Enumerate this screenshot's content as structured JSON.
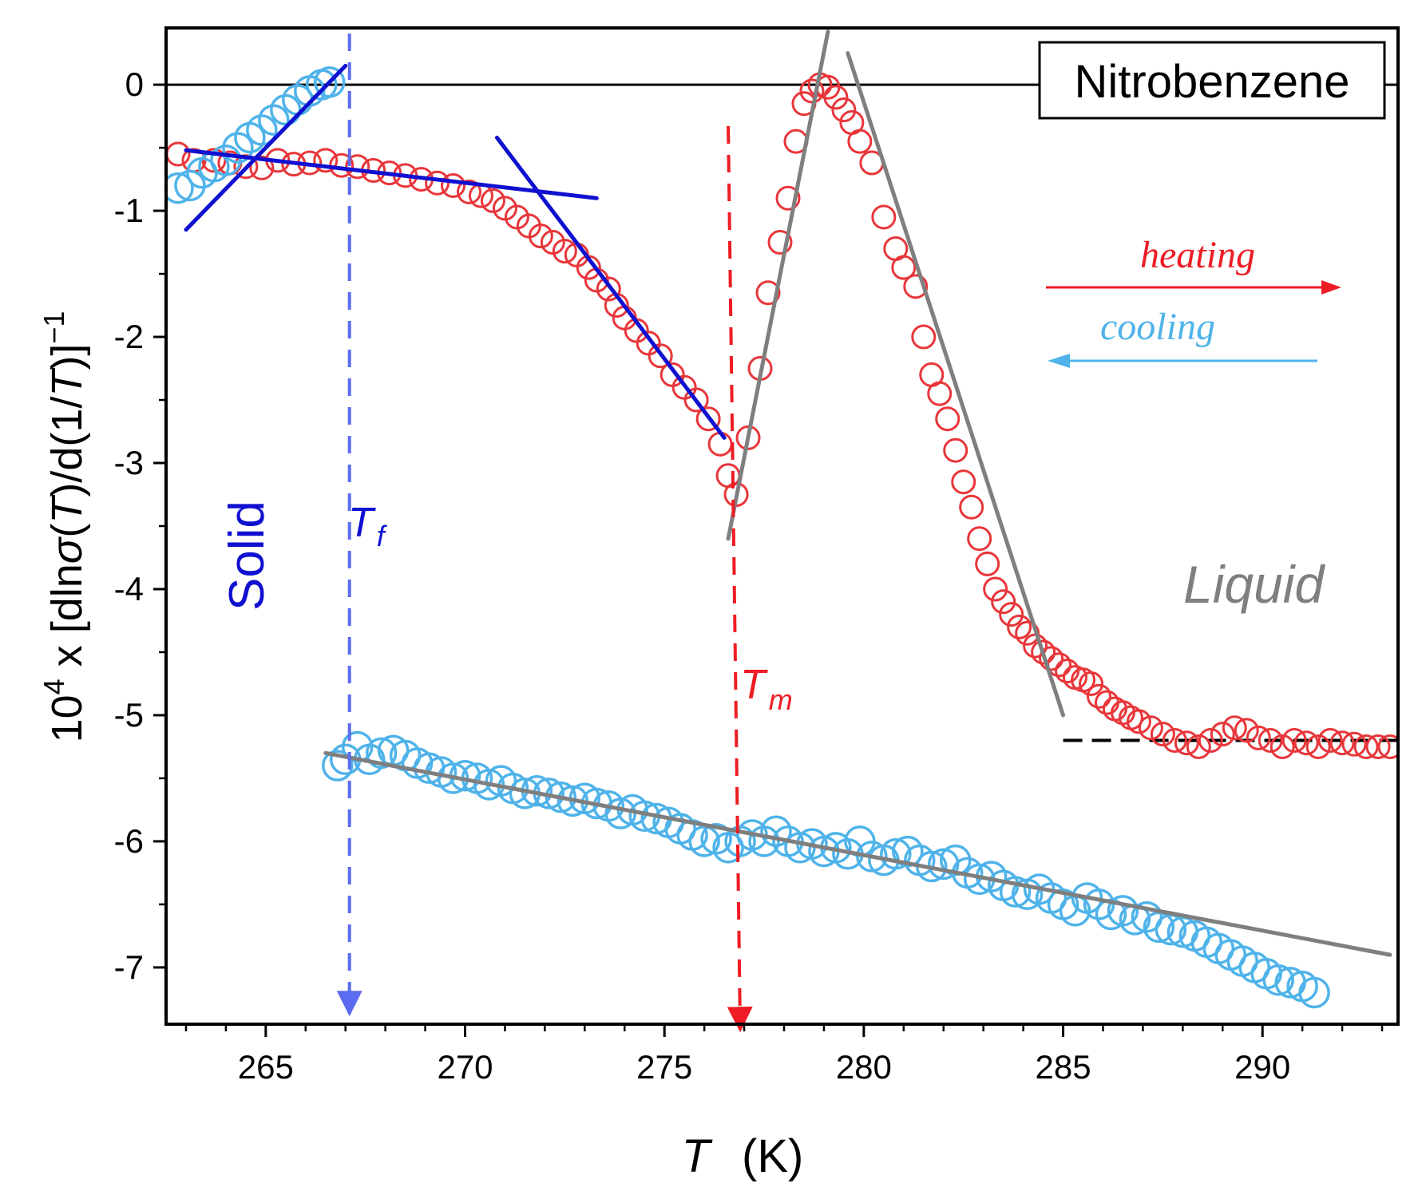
{
  "chart_data": {
    "type": "scatter",
    "title": "Nitrobenzene",
    "xlabel": "T",
    "xlabel_unit": "(K)",
    "ylabel": "10^4 x [dlnσ(T)/d(1/T)]^-1",
    "ylabel_parts": {
      "base": "10",
      "exp": "4",
      "mid": " x [dln",
      "sigma": "σ",
      "paren_open": "(",
      "T1": "T",
      "mid2": ")/d(1/",
      "T2": "T",
      "close": ")]",
      "exp2": "−1"
    },
    "xlim": [
      262.5,
      293.4
    ],
    "ylim": [
      -7.45,
      0.45
    ],
    "x_ticks": [
      265,
      270,
      275,
      280,
      285,
      290
    ],
    "x_tick_labels": [
      "265",
      "270",
      "275",
      "280",
      "285",
      "290"
    ],
    "y_ticks": [
      0,
      -1,
      -2,
      -3,
      -4,
      -5,
      -6,
      -7
    ],
    "y_tick_labels": [
      "0",
      "-1",
      "-2",
      "-3",
      "-4",
      "-5",
      "-6",
      "-7"
    ],
    "annotations": {
      "solid": "Solid",
      "liquid": "Liquid",
      "tf_main": "T",
      "tf_sub": "f",
      "tm_main": "T",
      "tm_sub": "m",
      "heating": "heating",
      "cooling": "cooling"
    },
    "markers": {
      "Tf": 267.1,
      "Tm": 276.9
    },
    "colors": {
      "heating": "#e8363a",
      "cooling": "#4fb3ea",
      "fit_blue": "#1010d0",
      "fit_gray": "#7f7f7f",
      "tf_line": "#5b6cf0",
      "tm_line": "#ee1c24",
      "solid_text": "#1010d0",
      "liquid_text": "#7f7f7f"
    },
    "series": [
      {
        "name": "heating",
        "x": [
          262.8,
          263.2,
          263.7,
          264.1,
          264.5,
          264.9,
          265.3,
          265.7,
          266.1,
          266.5,
          266.9,
          267.3,
          267.7,
          268.1,
          268.5,
          268.9,
          269.3,
          269.7,
          270.1,
          270.4,
          270.7,
          271.0,
          271.3,
          271.6,
          271.9,
          272.2,
          272.5,
          272.8,
          273.1,
          273.3,
          273.6,
          273.8,
          274.0,
          274.3,
          274.6,
          274.9,
          275.2,
          275.5,
          275.8,
          276.1,
          276.4,
          276.6,
          276.8,
          277.1,
          277.4,
          277.6,
          277.9,
          278.1,
          278.3,
          278.5,
          278.7,
          278.9,
          279.1,
          279.3,
          279.5,
          279.7,
          279.9,
          280.2,
          280.5,
          280.8,
          281.0,
          281.3,
          281.5,
          281.7,
          281.9,
          282.1,
          282.3,
          282.5,
          282.7,
          282.9,
          283.1,
          283.3,
          283.5,
          283.7,
          283.9,
          284.1,
          284.3,
          284.5,
          284.7,
          284.9,
          285.1,
          285.3,
          285.5,
          285.7,
          285.9,
          286.1,
          286.3,
          286.5,
          286.7,
          286.9,
          287.2,
          287.5,
          287.8,
          288.1,
          288.4,
          288.7,
          289.0,
          289.3,
          289.6,
          289.9,
          290.2,
          290.5,
          290.8,
          291.1,
          291.4,
          291.7,
          292.0,
          292.3,
          292.6,
          292.9,
          293.2
        ],
        "y": [
          -0.55,
          -0.6,
          -0.6,
          -0.62,
          -0.65,
          -0.66,
          -0.6,
          -0.63,
          -0.62,
          -0.6,
          -0.64,
          -0.65,
          -0.68,
          -0.7,
          -0.72,
          -0.75,
          -0.78,
          -0.8,
          -0.85,
          -0.88,
          -0.92,
          -0.98,
          -1.05,
          -1.12,
          -1.2,
          -1.25,
          -1.32,
          -1.35,
          -1.45,
          -1.55,
          -1.62,
          -1.75,
          -1.85,
          -1.95,
          -2.05,
          -2.15,
          -2.3,
          -2.4,
          -2.5,
          -2.65,
          -2.85,
          -3.1,
          -3.25,
          -2.8,
          -2.25,
          -1.65,
          -1.25,
          -0.9,
          -0.45,
          -0.15,
          -0.05,
          0,
          -0.02,
          -0.1,
          -0.2,
          -0.3,
          -0.45,
          -0.62,
          -1.05,
          -1.3,
          -1.45,
          -1.6,
          -2.0,
          -2.3,
          -2.45,
          -2.65,
          -2.9,
          -3.15,
          -3.35,
          -3.6,
          -3.8,
          -4.0,
          -4.1,
          -4.2,
          -4.3,
          -4.35,
          -4.45,
          -4.5,
          -4.55,
          -4.6,
          -4.65,
          -4.7,
          -4.72,
          -4.75,
          -4.85,
          -4.9,
          -4.95,
          -4.98,
          -5.02,
          -5.05,
          -5.1,
          -5.15,
          -5.2,
          -5.22,
          -5.25,
          -5.2,
          -5.15,
          -5.1,
          -5.12,
          -5.18,
          -5.2,
          -5.25,
          -5.2,
          -5.22,
          -5.25,
          -5.2,
          -5.22,
          -5.23,
          -5.25,
          -5.25,
          -5.25
        ]
      },
      {
        "name": "cooling",
        "x": [
          262.8,
          263.1,
          263.4,
          263.7,
          264.0,
          264.3,
          264.6,
          264.9,
          265.2,
          265.5,
          265.8,
          266.1,
          266.4,
          266.6,
          266.8,
          267.0,
          267.3,
          267.6,
          267.9,
          268.2,
          268.5,
          268.8,
          269.1,
          269.4,
          269.7,
          270.0,
          270.3,
          270.6,
          270.9,
          271.2,
          271.5,
          271.8,
          272.1,
          272.4,
          272.7,
          273.0,
          273.3,
          273.6,
          273.9,
          274.2,
          274.5,
          274.8,
          275.1,
          275.4,
          275.7,
          276.0,
          276.3,
          276.6,
          276.9,
          277.2,
          277.5,
          277.8,
          278.1,
          278.4,
          278.7,
          279.0,
          279.3,
          279.6,
          279.9,
          280.2,
          280.5,
          280.8,
          281.1,
          281.4,
          281.7,
          282.0,
          282.3,
          282.6,
          282.9,
          283.2,
          283.5,
          283.8,
          284.1,
          284.4,
          284.7,
          285.0,
          285.3,
          285.6,
          285.9,
          286.2,
          286.5,
          286.8,
          287.1,
          287.4,
          287.7,
          288.0,
          288.3,
          288.6,
          288.9,
          289.2,
          289.5,
          289.8,
          290.1,
          290.4,
          290.7,
          291.0,
          291.3
        ],
        "y": [
          -0.82,
          -0.8,
          -0.7,
          -0.65,
          -0.6,
          -0.5,
          -0.42,
          -0.36,
          -0.28,
          -0.2,
          -0.12,
          -0.05,
          0.0,
          0.02,
          -5.4,
          -5.35,
          -5.25,
          -5.35,
          -5.3,
          -5.28,
          -5.32,
          -5.38,
          -5.42,
          -5.45,
          -5.5,
          -5.48,
          -5.5,
          -5.55,
          -5.52,
          -5.58,
          -5.62,
          -5.6,
          -5.62,
          -5.65,
          -5.68,
          -5.66,
          -5.7,
          -5.72,
          -5.78,
          -5.75,
          -5.8,
          -5.82,
          -5.85,
          -5.9,
          -5.95,
          -6.0,
          -5.98,
          -6.05,
          -6.0,
          -5.95,
          -6.0,
          -5.92,
          -6.0,
          -6.05,
          -6.02,
          -6.08,
          -6.05,
          -6.1,
          -6.0,
          -6.12,
          -6.15,
          -6.1,
          -6.08,
          -6.15,
          -6.2,
          -6.18,
          -6.15,
          -6.25,
          -6.3,
          -6.28,
          -6.35,
          -6.4,
          -6.42,
          -6.38,
          -6.45,
          -6.5,
          -6.55,
          -6.45,
          -6.5,
          -6.58,
          -6.55,
          -6.62,
          -6.6,
          -6.68,
          -6.7,
          -6.72,
          -6.75,
          -6.8,
          -6.85,
          -6.9,
          -6.95,
          -7.0,
          -7.05,
          -7.1,
          -7.12,
          -7.15,
          -7.2
        ]
      }
    ],
    "fit_lines": [
      {
        "name": "cool-solid-fit",
        "color": "fit_blue",
        "x": [
          263.0,
          267.0
        ],
        "y": [
          -1.15,
          0.15
        ]
      },
      {
        "name": "heat-solid-fit",
        "color": "fit_blue",
        "x": [
          263.0,
          273.3
        ],
        "y": [
          -0.52,
          -0.9
        ]
      },
      {
        "name": "heat-premelt-fit",
        "color": "fit_blue",
        "x": [
          270.8,
          276.5
        ],
        "y": [
          -0.42,
          -2.8
        ]
      },
      {
        "name": "melt-rise-fit",
        "color": "fit_gray",
        "x": [
          276.6,
          279.1
        ],
        "y": [
          -3.6,
          0.42
        ]
      },
      {
        "name": "melt-fall-fit",
        "color": "fit_gray",
        "x": [
          279.6,
          285.0
        ],
        "y": [
          0.25,
          -5.0
        ]
      },
      {
        "name": "cooling-fit",
        "color": "fit_gray",
        "x": [
          266.5,
          293.2
        ],
        "y": [
          -5.3,
          -6.9
        ]
      }
    ],
    "baseline": {
      "x": [
        285.0,
        293.4
      ],
      "y": [
        -5.2,
        -5.2
      ]
    },
    "zero_line": {
      "y": 0
    }
  }
}
